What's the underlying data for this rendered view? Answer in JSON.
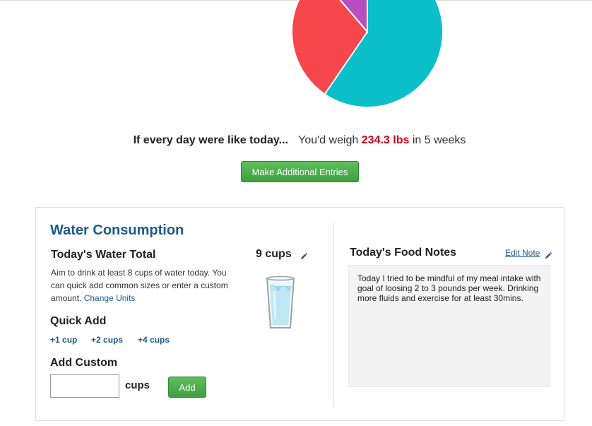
{
  "chart_data": {
    "type": "pie",
    "slices": [
      {
        "value": 53,
        "color": "#0bbfc9"
      },
      {
        "value": 26,
        "color": "#f5474c"
      },
      {
        "value": 10,
        "color": "#b84fc0"
      }
    ]
  },
  "projection": {
    "lead": "If every day were like today...",
    "prefix": "You'd weigh",
    "weight": "234.3 lbs",
    "suffix": "in 5 weeks"
  },
  "make_entries_label": "Make Additional Entries",
  "water": {
    "title": "Water Consumption",
    "total_heading": "Today's Water Total",
    "description": "Aim to drink at least 8 cups of water today. You can quick add common sizes or enter a custom amount.",
    "change_units": "Change Units",
    "cups_total": "9 cups",
    "edit_icon": "pencil-icon",
    "glass_icon": "water-glass-icon",
    "quick_add_heading": "Quick Add",
    "quick_add": [
      "+1 cup",
      "+2 cups",
      "+4 cups"
    ],
    "add_custom_heading": "Add Custom",
    "custom_value": "",
    "custom_unit": "cups",
    "add_label": "Add"
  },
  "notes": {
    "title": "Today's Food Notes",
    "edit_label": "Edit Note",
    "text": "Today I tried to be mindful of my meal intake with goal of loosing 2 to 3 pounds per week. Drinking more fluids and exercise for at least 30mins."
  },
  "colors": {
    "accent_blue": "#1d5a8c",
    "weight_red": "#d0021b",
    "button_green": "#4caf50"
  }
}
